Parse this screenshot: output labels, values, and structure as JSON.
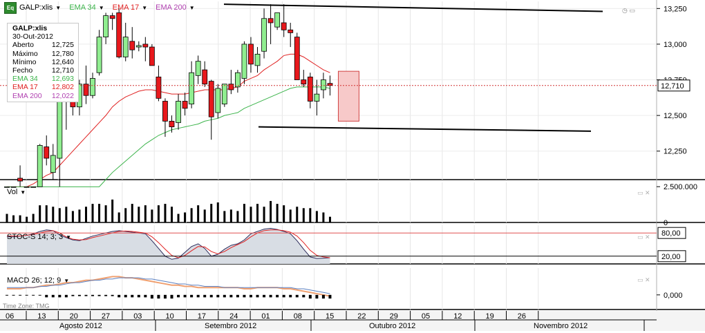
{
  "toolbar": {
    "icon_label": "Eq",
    "symbol": "GALP:xlis",
    "ema34_label": "EMA 34",
    "ema17_label": "EMA 17",
    "ema200_label": "EMA 200"
  },
  "info_box": {
    "title": "GALP:xlis",
    "date": "30-Out-2012",
    "rows": [
      {
        "label": "Aberto",
        "value": "12,725"
      },
      {
        "label": "Máximo",
        "value": "12,780"
      },
      {
        "label": "Mínimo",
        "value": "12,640"
      },
      {
        "label": "Fecho",
        "value": "12,710"
      },
      {
        "label": "EMA 34",
        "value": "12,693"
      },
      {
        "label": "EMA 17",
        "value": "12,802"
      },
      {
        "label": "EMA 200",
        "value": "12,022"
      }
    ]
  },
  "colors": {
    "up": "#90ee90",
    "down": "#e8181c",
    "ema34": "#3cb44b",
    "ema17": "#e02020",
    "ema200": "#b040b0",
    "trendline": "#000000",
    "box": "#f7c9c9"
  },
  "panels": {
    "volume_label": "Vol",
    "stoch_label": "STOC-S 14; 3; 3",
    "macd_label": "MACD 26; 12; 9",
    "timezone": "Time Zone: TMG"
  },
  "price_axis": {
    "last_price_label": "12,710",
    "ticks": [
      "13,250",
      "13,000",
      "12,750",
      "12,500",
      "12,250"
    ]
  },
  "volume_axis": {
    "ticks": [
      "2.500.000",
      "0"
    ]
  },
  "stoch_axis": {
    "ticks": [
      "80,00",
      "20,00"
    ]
  },
  "macd_axis": {
    "ticks": [
      "0,000"
    ]
  },
  "chart_data": {
    "type": "candlestick",
    "series": [
      {
        "name": "GALP:xlis"
      },
      {
        "name": "EMA 34"
      },
      {
        "name": "EMA 17"
      },
      {
        "name": "EMA 200"
      }
    ],
    "price_ylim": [
      12.05,
      13.3
    ],
    "days": [
      {
        "day": "06",
        "o": 12.0,
        "h": 12.0,
        "l": 12.0,
        "c": 12.0
      },
      {
        "day": "13",
        "o": 12.0,
        "h": 12.0,
        "l": 12.0,
        "c": 12.0
      },
      {
        "day": "14",
        "o": 12.06,
        "h": 12.15,
        "l": 12.0,
        "c": 12.04
      },
      {
        "day": "23",
        "o": 12.0,
        "h": 12.0,
        "l": 12.0,
        "c": 12.0
      },
      {
        "day": "27",
        "o": 12.0,
        "h": 12.0,
        "l": 12.0,
        "c": 12.0
      },
      {
        "day": "31",
        "o": 12.0,
        "h": 12.3,
        "l": 12.0,
        "c": 12.29
      },
      {
        "day": "03",
        "o": 12.28,
        "h": 12.36,
        "l": 12.15,
        "c": 12.2
      },
      {
        "day": "04",
        "o": 12.1,
        "h": 12.3,
        "l": 12.05,
        "c": 12.22
      },
      {
        "day": "05",
        "o": 12.2,
        "h": 12.45,
        "l": 12.0,
        "c": 12.6
      },
      {
        "day": "06",
        "o": 12.6,
        "h": 12.95,
        "l": 12.4,
        "c": 12.63
      },
      {
        "day": "07",
        "o": 12.63,
        "h": 12.75,
        "l": 12.5,
        "c": 12.56
      },
      {
        "day": "10",
        "o": 12.56,
        "h": 12.75,
        "l": 12.5,
        "c": 12.72
      },
      {
        "day": "11",
        "o": 12.72,
        "h": 12.85,
        "l": 12.58,
        "c": 12.64
      },
      {
        "day": "12",
        "o": 12.64,
        "h": 12.8,
        "l": 12.62,
        "c": 12.76
      },
      {
        "day": "13",
        "o": 12.8,
        "h": 13.1,
        "l": 12.78,
        "c": 13.05
      },
      {
        "day": "14",
        "o": 13.05,
        "h": 13.22,
        "l": 13.0,
        "c": 13.2
      },
      {
        "day": "17",
        "o": 13.2,
        "h": 13.22,
        "l": 13.1,
        "c": 13.18
      },
      {
        "day": "18",
        "o": 13.22,
        "h": 13.25,
        "l": 12.9,
        "c": 12.91
      },
      {
        "day": "19",
        "o": 12.91,
        "h": 13.15,
        "l": 12.88,
        "c": 13.05
      },
      {
        "day": "20",
        "o": 13.02,
        "h": 13.12,
        "l": 12.9,
        "c": 12.96
      },
      {
        "day": "21",
        "o": 12.98,
        "h": 13.02,
        "l": 12.95,
        "c": 12.99
      },
      {
        "day": "24",
        "o": 13.0,
        "h": 13.05,
        "l": 12.88,
        "c": 12.98
      },
      {
        "day": "25",
        "o": 12.98,
        "h": 13.0,
        "l": 12.85,
        "c": 12.85
      },
      {
        "day": "26",
        "o": 12.77,
        "h": 12.85,
        "l": 12.6,
        "c": 12.62
      },
      {
        "day": "27",
        "o": 12.6,
        "h": 12.62,
        "l": 12.35,
        "c": 12.46
      },
      {
        "day": "28",
        "o": 12.46,
        "h": 12.5,
        "l": 12.38,
        "c": 12.42
      },
      {
        "day": "01",
        "o": 12.45,
        "h": 12.65,
        "l": 12.4,
        "c": 12.6
      },
      {
        "day": "02",
        "o": 12.6,
        "h": 12.66,
        "l": 12.5,
        "c": 12.55
      },
      {
        "day": "03",
        "o": 12.58,
        "h": 12.88,
        "l": 12.55,
        "c": 12.8
      },
      {
        "day": "04",
        "o": 12.78,
        "h": 12.92,
        "l": 12.72,
        "c": 12.88
      },
      {
        "day": "05",
        "o": 12.82,
        "h": 12.88,
        "l": 12.7,
        "c": 12.72
      },
      {
        "day": "08",
        "o": 12.74,
        "h": 12.75,
        "l": 12.33,
        "c": 12.49
      },
      {
        "day": "09",
        "o": 12.52,
        "h": 12.72,
        "l": 12.48,
        "c": 12.69
      },
      {
        "day": "10",
        "o": 12.58,
        "h": 12.72,
        "l": 12.56,
        "c": 12.72
      },
      {
        "day": "11",
        "o": 12.72,
        "h": 12.82,
        "l": 12.65,
        "c": 12.68
      },
      {
        "day": "12",
        "o": 12.7,
        "h": 12.82,
        "l": 12.66,
        "c": 12.8
      },
      {
        "day": "15",
        "o": 12.76,
        "h": 13.02,
        "l": 12.72,
        "c": 13.0
      },
      {
        "day": "16",
        "o": 13.0,
        "h": 13.05,
        "l": 12.8,
        "c": 12.86
      },
      {
        "day": "17",
        "o": 12.85,
        "h": 12.98,
        "l": 12.8,
        "c": 12.93
      },
      {
        "day": "18",
        "o": 12.95,
        "h": 13.25,
        "l": 12.9,
        "c": 13.18
      },
      {
        "day": "19",
        "o": 13.18,
        "h": 13.28,
        "l": 13.0,
        "c": 13.15
      },
      {
        "day": "22",
        "o": 13.12,
        "h": 13.22,
        "l": 13.1,
        "c": 13.22
      },
      {
        "day": "23",
        "o": 13.15,
        "h": 13.28,
        "l": 13.05,
        "c": 13.1
      },
      {
        "day": "24",
        "o": 13.1,
        "h": 13.15,
        "l": 12.98,
        "c": 13.08
      },
      {
        "day": "25",
        "o": 13.05,
        "h": 13.08,
        "l": 12.9,
        "c": 12.75
      },
      {
        "day": "26",
        "o": 12.75,
        "h": 12.82,
        "l": 12.7,
        "c": 12.72
      },
      {
        "day": "29",
        "o": 12.77,
        "h": 12.8,
        "l": 12.55,
        "c": 12.6
      },
      {
        "day": "30",
        "o": 12.6,
        "h": 12.75,
        "l": 12.5,
        "c": 12.65
      },
      {
        "day": "31",
        "o": 12.68,
        "h": 12.8,
        "l": 12.62,
        "c": 12.75
      },
      {
        "day": "30-Out",
        "o": 12.725,
        "h": 12.78,
        "l": 12.64,
        "c": 12.71
      }
    ],
    "ema17": [
      12.0,
      12.0,
      12.0,
      12.0,
      12.02,
      12.05,
      12.08,
      12.1,
      12.15,
      12.2,
      12.25,
      12.3,
      12.35,
      12.4,
      12.45,
      12.5,
      12.56,
      12.6,
      12.63,
      12.65,
      12.67,
      12.68,
      12.68,
      12.67,
      12.66,
      12.65,
      12.65,
      12.65,
      12.66,
      12.67,
      12.68,
      12.68,
      12.68,
      12.68,
      12.69,
      12.7,
      12.74,
      12.76,
      12.78,
      12.82,
      12.85,
      12.88,
      12.92,
      12.93,
      12.93,
      12.91,
      12.88,
      12.85,
      12.82,
      12.8
    ],
    "ema34": [
      12.0,
      12.0,
      12.0,
      12.0,
      12.0,
      12.0,
      12.0,
      12.0,
      12.0,
      12.0,
      12.0,
      12.0,
      12.0,
      12.0,
      12.0,
      12.05,
      12.1,
      12.14,
      12.18,
      12.22,
      12.26,
      12.3,
      12.33,
      12.36,
      12.38,
      12.4,
      12.41,
      12.42,
      12.43,
      12.44,
      12.46,
      12.47,
      12.48,
      12.5,
      12.51,
      12.52,
      12.55,
      12.57,
      12.59,
      12.61,
      12.63,
      12.65,
      12.67,
      12.69,
      12.7,
      12.7,
      12.7,
      12.7,
      12.7,
      12.69
    ],
    "volume": [
      600000,
      500000,
      500000,
      400000,
      600000,
      1200000,
      1200000,
      1100000,
      1000000,
      1100000,
      800000,
      900000,
      1100000,
      1300000,
      1300000,
      1200000,
      1600000,
      700000,
      1000000,
      1300000,
      1100000,
      1200000,
      900000,
      1200000,
      1300000,
      1100000,
      600000,
      700000,
      1000000,
      1200000,
      900000,
      1300000,
      1400000,
      800000,
      900000,
      800000,
      1300000,
      1100000,
      1300000,
      1100000,
      1500000,
      1300000,
      1200000,
      900000,
      1100000,
      1000000,
      1000000,
      800000,
      700000,
      400000
    ],
    "volume_ylim": [
      0,
      2800000
    ],
    "stoch_k": [
      70,
      70,
      72,
      74,
      78,
      84,
      88,
      86,
      75,
      68,
      62,
      60,
      66,
      72,
      76,
      80,
      84,
      86,
      84,
      82,
      80,
      78,
      60,
      40,
      20,
      12,
      15,
      30,
      45,
      52,
      40,
      20,
      25,
      38,
      48,
      52,
      62,
      78,
      84,
      90,
      92,
      89,
      84,
      78,
      60,
      38,
      18,
      14,
      15,
      16
    ],
    "stoch_d": [
      72,
      72,
      72,
      74,
      76,
      80,
      84,
      86,
      80,
      70,
      64,
      62,
      63,
      68,
      72,
      76,
      80,
      84,
      85,
      84,
      82,
      80,
      70,
      55,
      38,
      22,
      16,
      22,
      34,
      45,
      44,
      32,
      26,
      32,
      42,
      50,
      58,
      70,
      80,
      86,
      88,
      88,
      86,
      82,
      72,
      55,
      35,
      22,
      18,
      16
    ],
    "stoch_ylim": [
      0,
      100
    ],
    "macd_hist": [
      0.0,
      0.0,
      0.0,
      0.0,
      0.0,
      0.0,
      -0.02,
      -0.02,
      -0.02,
      -0.02,
      -0.01,
      -0.01,
      -0.01,
      -0.01,
      -0.01,
      -0.01,
      -0.01,
      -0.02,
      -0.02,
      -0.02,
      -0.02,
      -0.02,
      -0.03,
      -0.03,
      -0.03,
      -0.03,
      -0.02,
      -0.02,
      -0.02,
      -0.02,
      -0.02,
      -0.02,
      -0.02,
      -0.02,
      -0.02,
      -0.02,
      -0.02,
      -0.02,
      -0.02,
      -0.02,
      -0.02,
      -0.02,
      -0.02,
      -0.02,
      -0.02,
      -0.02,
      -0.03,
      -0.03,
      -0.03,
      -0.03
    ],
    "macd_line": [
      0.05,
      0.05,
      0.05,
      0.06,
      0.06,
      0.07,
      0.08,
      0.08,
      0.09,
      0.1,
      0.1,
      0.11,
      0.12,
      0.12,
      0.13,
      0.14,
      0.15,
      0.15,
      0.14,
      0.14,
      0.13,
      0.12,
      0.11,
      0.1,
      0.09,
      0.08,
      0.08,
      0.07,
      0.07,
      0.06,
      0.06,
      0.06,
      0.06,
      0.06,
      0.06,
      0.06,
      0.05,
      0.05,
      0.06,
      0.06,
      0.06,
      0.06,
      0.05,
      0.05,
      0.04,
      0.03,
      0.02,
      0.01,
      0.0,
      -0.01
    ],
    "macd_signal": [
      0.06,
      0.06,
      0.06,
      0.06,
      0.06,
      0.07,
      0.07,
      0.08,
      0.08,
      0.09,
      0.1,
      0.1,
      0.11,
      0.12,
      0.12,
      0.13,
      0.13,
      0.14,
      0.14,
      0.14,
      0.14,
      0.13,
      0.13,
      0.12,
      0.11,
      0.1,
      0.09,
      0.09,
      0.08,
      0.08,
      0.07,
      0.07,
      0.07,
      0.06,
      0.06,
      0.06,
      0.06,
      0.06,
      0.06,
      0.06,
      0.06,
      0.06,
      0.06,
      0.06,
      0.05,
      0.05,
      0.04,
      0.03,
      0.02,
      0.01
    ],
    "macd_ylim": [
      -0.12,
      0.22
    ],
    "x_ticks": [
      "06",
      "13",
      "20",
      "27",
      "03",
      "10",
      "17",
      "24",
      "01",
      "08",
      "15",
      "22",
      "29",
      "05",
      "12",
      "19",
      "26"
    ],
    "months": [
      "Agosto 2012",
      "Setembro 2012",
      "Outubro 2012",
      "Novembro 2012"
    ]
  }
}
